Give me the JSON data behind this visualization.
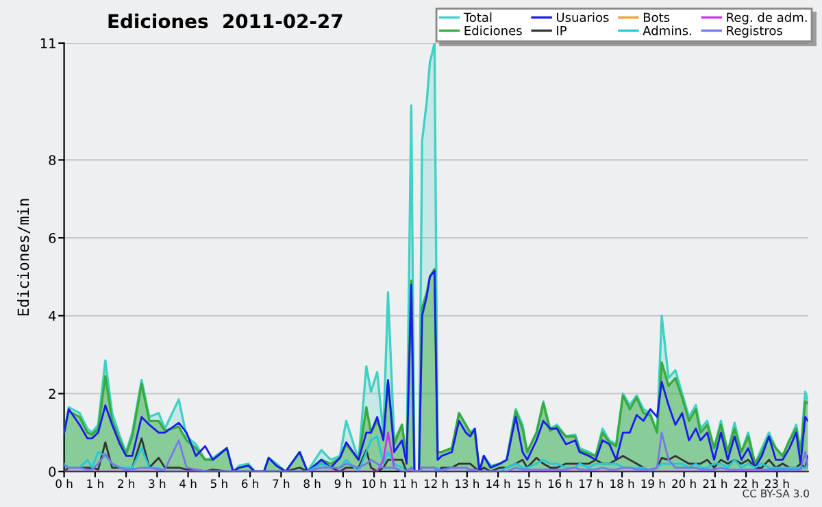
{
  "chart_data": {
    "type": "line",
    "title": "Ediciones  2011-02-27",
    "ylabel": "Ediciones/min",
    "annotations": [
      "CC BY-SA 3.0"
    ],
    "xlim": [
      0,
      24
    ],
    "ylim": [
      0,
      11
    ],
    "yticks": [
      0,
      2,
      4,
      6,
      8,
      11
    ],
    "xticks": [
      {
        "value": 0,
        "label": "0 h"
      },
      {
        "value": 1,
        "label": "1 h"
      },
      {
        "value": 2,
        "label": "2 h"
      },
      {
        "value": 3,
        "label": "3 h"
      },
      {
        "value": 4,
        "label": "4 h"
      },
      {
        "value": 5,
        "label": "5 h"
      },
      {
        "value": 6,
        "label": "6 h"
      },
      {
        "value": 7,
        "label": "7 h"
      },
      {
        "value": 8,
        "label": "8 h"
      },
      {
        "value": 9,
        "label": "9 h"
      },
      {
        "value": 10,
        "label": "10 h"
      },
      {
        "value": 11,
        "label": "11 h"
      },
      {
        "value": 12,
        "label": "12 h"
      },
      {
        "value": 13,
        "label": "13 h"
      },
      {
        "value": 14,
        "label": "14 h"
      },
      {
        "value": 15,
        "label": "15 h"
      },
      {
        "value": 16,
        "label": "16 h"
      },
      {
        "value": 17,
        "label": "17 h"
      },
      {
        "value": 18,
        "label": "18 h"
      },
      {
        "value": 19,
        "label": "19 h"
      },
      {
        "value": 20,
        "label": "20 h"
      },
      {
        "value": 21,
        "label": "21 h"
      },
      {
        "value": 22,
        "label": "22 h"
      },
      {
        "value": 23,
        "label": "23 h"
      }
    ],
    "grid": "y",
    "legend": "top right",
    "line_style": "solid",
    "x": [
      0,
      0.15,
      0.5,
      0.75,
      0.9,
      1.1,
      1.33,
      1.55,
      1.8,
      2.0,
      2.2,
      2.5,
      2.75,
      3.05,
      3.25,
      3.7,
      3.95,
      4.25,
      4.55,
      4.8,
      5.25,
      5.45,
      5.65,
      5.95,
      6.15,
      6.45,
      6.6,
      6.85,
      7.15,
      7.6,
      7.85,
      8.3,
      8.6,
      8.9,
      9.1,
      9.5,
      9.75,
      9.9,
      10.1,
      10.3,
      10.45,
      10.65,
      10.9,
      11.05,
      11.2,
      11.3,
      11.45,
      11.55,
      11.7,
      11.8,
      11.95,
      12.05,
      12.18,
      12.51,
      12.74,
      12.96,
      13.1,
      13.25,
      13.4,
      13.54,
      13.76,
      14.06,
      14.28,
      14.57,
      14.79,
      14.94,
      15.24,
      15.46,
      15.68,
      15.9,
      16.19,
      16.49,
      16.63,
      16.93,
      17.15,
      17.37,
      17.59,
      17.81,
      18.03,
      18.25,
      18.47,
      18.69,
      18.91,
      19.13,
      19.28,
      19.5,
      19.72,
      19.94,
      20.16,
      20.38,
      20.53,
      20.75,
      20.97,
      21.19,
      21.41,
      21.63,
      21.85,
      22.07,
      22.29,
      22.51,
      22.74,
      22.96,
      23.18,
      23.4,
      23.62,
      23.76,
      23.91,
      24.0
    ],
    "series": [
      {
        "name": "Total",
        "type": "area",
        "color": "#3fd1c4",
        "values": [
          1.0,
          1.65,
          1.5,
          1.1,
          1.0,
          1.2,
          2.85,
          1.5,
          0.9,
          0.5,
          1.0,
          2.35,
          1.4,
          1.5,
          1.1,
          1.85,
          0.9,
          0.7,
          0.3,
          0.35,
          0.6,
          0,
          0.15,
          0.2,
          0,
          0,
          0.35,
          0.2,
          0,
          0.5,
          0,
          0.55,
          0.3,
          0.4,
          1.3,
          0.3,
          2.7,
          2.05,
          2.55,
          1.0,
          4.6,
          0.8,
          1.2,
          0.3,
          9.4,
          0,
          0,
          8.5,
          9.5,
          10.5,
          11,
          0.5,
          0.5,
          0.6,
          1.5,
          1.2,
          1.0,
          1.1,
          0,
          0.4,
          0.15,
          0.2,
          0.3,
          1.6,
          1.2,
          0.5,
          1.0,
          1.8,
          1.1,
          1.2,
          0.9,
          0.95,
          0.6,
          0.5,
          0.4,
          1.1,
          0.8,
          0.7,
          2.0,
          1.7,
          1.95,
          1.6,
          1.5,
          1.0,
          4.0,
          2.4,
          2.6,
          2.0,
          1.4,
          1.7,
          1.1,
          1.3,
          0.6,
          1.3,
          0.5,
          1.25,
          0.5,
          1.0,
          0.2,
          0.6,
          1.0,
          0.6,
          0.4,
          0.8,
          1.2,
          0.5,
          2.05,
          1.8
        ]
      },
      {
        "name": "Ediciones",
        "type": "area",
        "color": "#3aaa3a",
        "values": [
          1.0,
          1.55,
          1.4,
          1.0,
          0.95,
          1.1,
          2.45,
          1.3,
          0.8,
          0.45,
          0.9,
          2.25,
          1.3,
          1.3,
          1.05,
          1.15,
          0.8,
          0.6,
          0.3,
          0.3,
          0.6,
          0,
          0.1,
          0.15,
          0,
          0,
          0.35,
          0.15,
          0,
          0.5,
          0,
          0.3,
          0.2,
          0.35,
          0.7,
          0.3,
          1.65,
          1.0,
          1.3,
          0.9,
          2.3,
          0.7,
          1.2,
          0.3,
          4.9,
          0,
          0,
          4.2,
          4.6,
          5.0,
          5.2,
          0.5,
          0.5,
          0.6,
          1.5,
          1.2,
          1.0,
          1.0,
          0,
          0.4,
          0.1,
          0.2,
          0.3,
          1.55,
          1.1,
          0.5,
          1.0,
          1.75,
          1.05,
          1.15,
          0.9,
          0.9,
          0.55,
          0.45,
          0.4,
          1.0,
          0.75,
          0.65,
          1.95,
          1.6,
          1.9,
          1.5,
          1.45,
          1.0,
          2.8,
          2.2,
          2.4,
          1.9,
          1.3,
          1.6,
          1.0,
          1.2,
          0.6,
          1.2,
          0.5,
          1.1,
          0.5,
          0.9,
          0.2,
          0.5,
          0.9,
          0.6,
          0.4,
          0.8,
          1.1,
          0.5,
          1.8,
          1.75
        ]
      },
      {
        "name": "Usuarios",
        "color": "#1a1aee",
        "values": [
          1.0,
          1.6,
          1.2,
          0.85,
          0.85,
          1.0,
          1.7,
          1.2,
          0.7,
          0.4,
          0.4,
          1.4,
          1.2,
          1.0,
          1.0,
          1.25,
          1.0,
          0.4,
          0.65,
          0.3,
          0.6,
          0,
          0.1,
          0.15,
          0,
          0,
          0.35,
          0.15,
          0,
          0.5,
          0,
          0.3,
          0.1,
          0.35,
          0.75,
          0.3,
          1.0,
          1.0,
          1.4,
          0.8,
          2.35,
          0.5,
          0.8,
          0.2,
          4.8,
          0,
          0,
          4.0,
          4.5,
          5.0,
          5.15,
          0.3,
          0.4,
          0.5,
          1.3,
          1.0,
          0.9,
          1.1,
          0,
          0.4,
          0.1,
          0.2,
          0.3,
          1.4,
          0.5,
          0.3,
          0.8,
          1.3,
          1.1,
          1.1,
          0.7,
          0.8,
          0.5,
          0.4,
          0.3,
          0.8,
          0.7,
          0.3,
          1.0,
          1.0,
          1.45,
          1.3,
          1.6,
          1.4,
          2.3,
          1.7,
          1.2,
          1.5,
          0.8,
          1.1,
          0.8,
          1.0,
          0.3,
          1.0,
          0.3,
          0.9,
          0.3,
          0.6,
          0.1,
          0.4,
          0.9,
          0.3,
          0.3,
          0.6,
          1.0,
          0.2,
          1.4,
          1.3
        ]
      },
      {
        "name": "IP",
        "color": "#333333",
        "values": [
          0,
          0.1,
          0.1,
          0.1,
          0.1,
          0.05,
          0.75,
          0.1,
          0.1,
          0.05,
          0.1,
          0.85,
          0.1,
          0.35,
          0.1,
          0.1,
          0.05,
          0.05,
          0,
          0.05,
          0,
          0,
          0,
          0,
          0,
          0,
          0,
          0,
          0,
          0.1,
          0,
          0.2,
          0.1,
          0,
          0.1,
          0.1,
          0.55,
          0.1,
          0,
          0.1,
          0.3,
          0.3,
          0.3,
          0,
          0.1,
          0,
          0,
          0.1,
          0.1,
          0.1,
          0.1,
          0,
          0.1,
          0.1,
          0.2,
          0.2,
          0.2,
          0.1,
          0,
          0.1,
          0,
          0.1,
          0.1,
          0.2,
          0.3,
          0.1,
          0.35,
          0.2,
          0.1,
          0.1,
          0.2,
          0.2,
          0.2,
          0.2,
          0.3,
          0.2,
          0.2,
          0.3,
          0.4,
          0.3,
          0.2,
          0.1,
          0,
          0.1,
          0.35,
          0.3,
          0.4,
          0.3,
          0.2,
          0.2,
          0.2,
          0.3,
          0.1,
          0.3,
          0.2,
          0.3,
          0.2,
          0.3,
          0.1,
          0.1,
          0.3,
          0.1,
          0.2,
          0.1,
          0.1,
          0.2,
          0.1,
          0.4
        ]
      },
      {
        "name": "Bots",
        "color": "#f0a030",
        "values": [
          null,
          null,
          null,
          null,
          null,
          null,
          null,
          null,
          null,
          null,
          null,
          null,
          null,
          null,
          null,
          null,
          null,
          null,
          null,
          null,
          null,
          null,
          null,
          null,
          null,
          null,
          null,
          null,
          null,
          null,
          null,
          null,
          null,
          null,
          null,
          null,
          null,
          null,
          null,
          null,
          null,
          null,
          null,
          null,
          null,
          null,
          null,
          null,
          null,
          null,
          null,
          null,
          null,
          null,
          null,
          null,
          null,
          null,
          null,
          null,
          null,
          null,
          null,
          null,
          null,
          null,
          null,
          null,
          null,
          null,
          null,
          null,
          null,
          null,
          null,
          null,
          null,
          null,
          null,
          null,
          null,
          null,
          null,
          null,
          null,
          null,
          null,
          null,
          null,
          null,
          null,
          null,
          null,
          null,
          null,
          null,
          null,
          null,
          null,
          null,
          null,
          null,
          null,
          null,
          null,
          null,
          null,
          null
        ]
      },
      {
        "name": "Admins.",
        "color": "#22c8dd",
        "values": [
          0.2,
          0.1,
          0.1,
          0.3,
          0.1,
          0.5,
          0.4,
          0.2,
          0.1,
          0.1,
          0.1,
          0.6,
          0.1,
          0.1,
          0,
          0,
          0,
          0,
          0,
          0,
          0,
          0,
          0,
          0,
          0,
          0,
          0,
          0,
          0,
          0,
          0,
          0.2,
          0.1,
          0.1,
          0.3,
          0,
          0.5,
          0.8,
          0.9,
          0.2,
          0.5,
          0.2,
          0.1,
          0,
          0,
          0,
          0,
          0,
          0,
          0,
          0,
          0.1,
          0,
          0.1,
          0.1,
          0.1,
          0,
          0,
          0,
          0,
          0,
          0,
          0.1,
          0.2,
          0.1,
          0.1,
          0.2,
          0.3,
          0.2,
          0.2,
          0.1,
          0.1,
          0.2,
          0.1,
          0.2,
          0.2,
          0.2,
          0.2,
          0.1,
          0.1,
          0.1,
          0.1,
          0,
          0.1,
          0.2,
          0.2,
          0.2,
          0.2,
          0.1,
          0.2,
          0.1,
          0.1,
          0.2,
          0.2,
          0.1,
          0.3,
          0.1,
          0.2,
          0.1,
          0.2,
          0.1,
          0.1,
          0.1,
          0.1,
          0.1,
          0.1,
          0.1,
          0.2
        ]
      },
      {
        "name": "Reg. de adm.",
        "color": "#cc33ee",
        "values": [
          0,
          0,
          0,
          0,
          0,
          0,
          0,
          0,
          0,
          0,
          0,
          0,
          0,
          0,
          0,
          0,
          0,
          0,
          0,
          0,
          0,
          0,
          0,
          0,
          0,
          0,
          0,
          0,
          0,
          0,
          0,
          0,
          0,
          0,
          0,
          0,
          0,
          0,
          0,
          0.3,
          1.0,
          0.1,
          0,
          0,
          0,
          0,
          0,
          0,
          0,
          0,
          0,
          0,
          0,
          0,
          0,
          0,
          0,
          0,
          0,
          0,
          0,
          0,
          0,
          0,
          0,
          0,
          0,
          0,
          0,
          0,
          0,
          0,
          0,
          0,
          0,
          0,
          0,
          0,
          0,
          0,
          0,
          0,
          0,
          0,
          0,
          0,
          0,
          0,
          0,
          0,
          0,
          0,
          0,
          0,
          0,
          0,
          0,
          0,
          0,
          0,
          0,
          0,
          0,
          0,
          0,
          0,
          0,
          0
        ]
      },
      {
        "name": "Registros",
        "color": "#7777ee",
        "values": [
          0.15,
          0.1,
          0.1,
          0.05,
          0.05,
          0.2,
          0.45,
          0.2,
          0.1,
          0.05,
          0.05,
          0.1,
          0.1,
          0.05,
          0.05,
          0.8,
          0.1,
          0.05,
          0,
          0,
          0,
          0,
          0,
          0,
          0,
          0,
          0,
          0,
          0,
          0,
          0,
          0.1,
          0.1,
          0.1,
          0.2,
          0.1,
          0.2,
          0.3,
          0.2,
          0.1,
          0.1,
          0.1,
          0,
          0,
          0.1,
          0,
          0,
          0.1,
          0.1,
          0.1,
          0.1,
          0,
          0.05,
          0.1,
          0.1,
          0.1,
          0.05,
          0.05,
          0,
          0,
          0,
          0,
          0,
          0.1,
          0.05,
          0.05,
          0.05,
          0.05,
          0.05,
          0.05,
          0.05,
          0.1,
          0.05,
          0.05,
          0.05,
          0.1,
          0.05,
          0.05,
          0.1,
          0.1,
          0.05,
          0.05,
          0.05,
          0.1,
          1.0,
          0.3,
          0.1,
          0.1,
          0.1,
          0.1,
          0.05,
          0.05,
          0.05,
          0.1,
          0.05,
          0.05,
          0.05,
          0.05,
          0.05,
          0.05,
          0.05,
          0.05,
          0.05,
          0.05,
          0.05,
          0.05,
          0.5,
          0.1
        ]
      }
    ]
  }
}
